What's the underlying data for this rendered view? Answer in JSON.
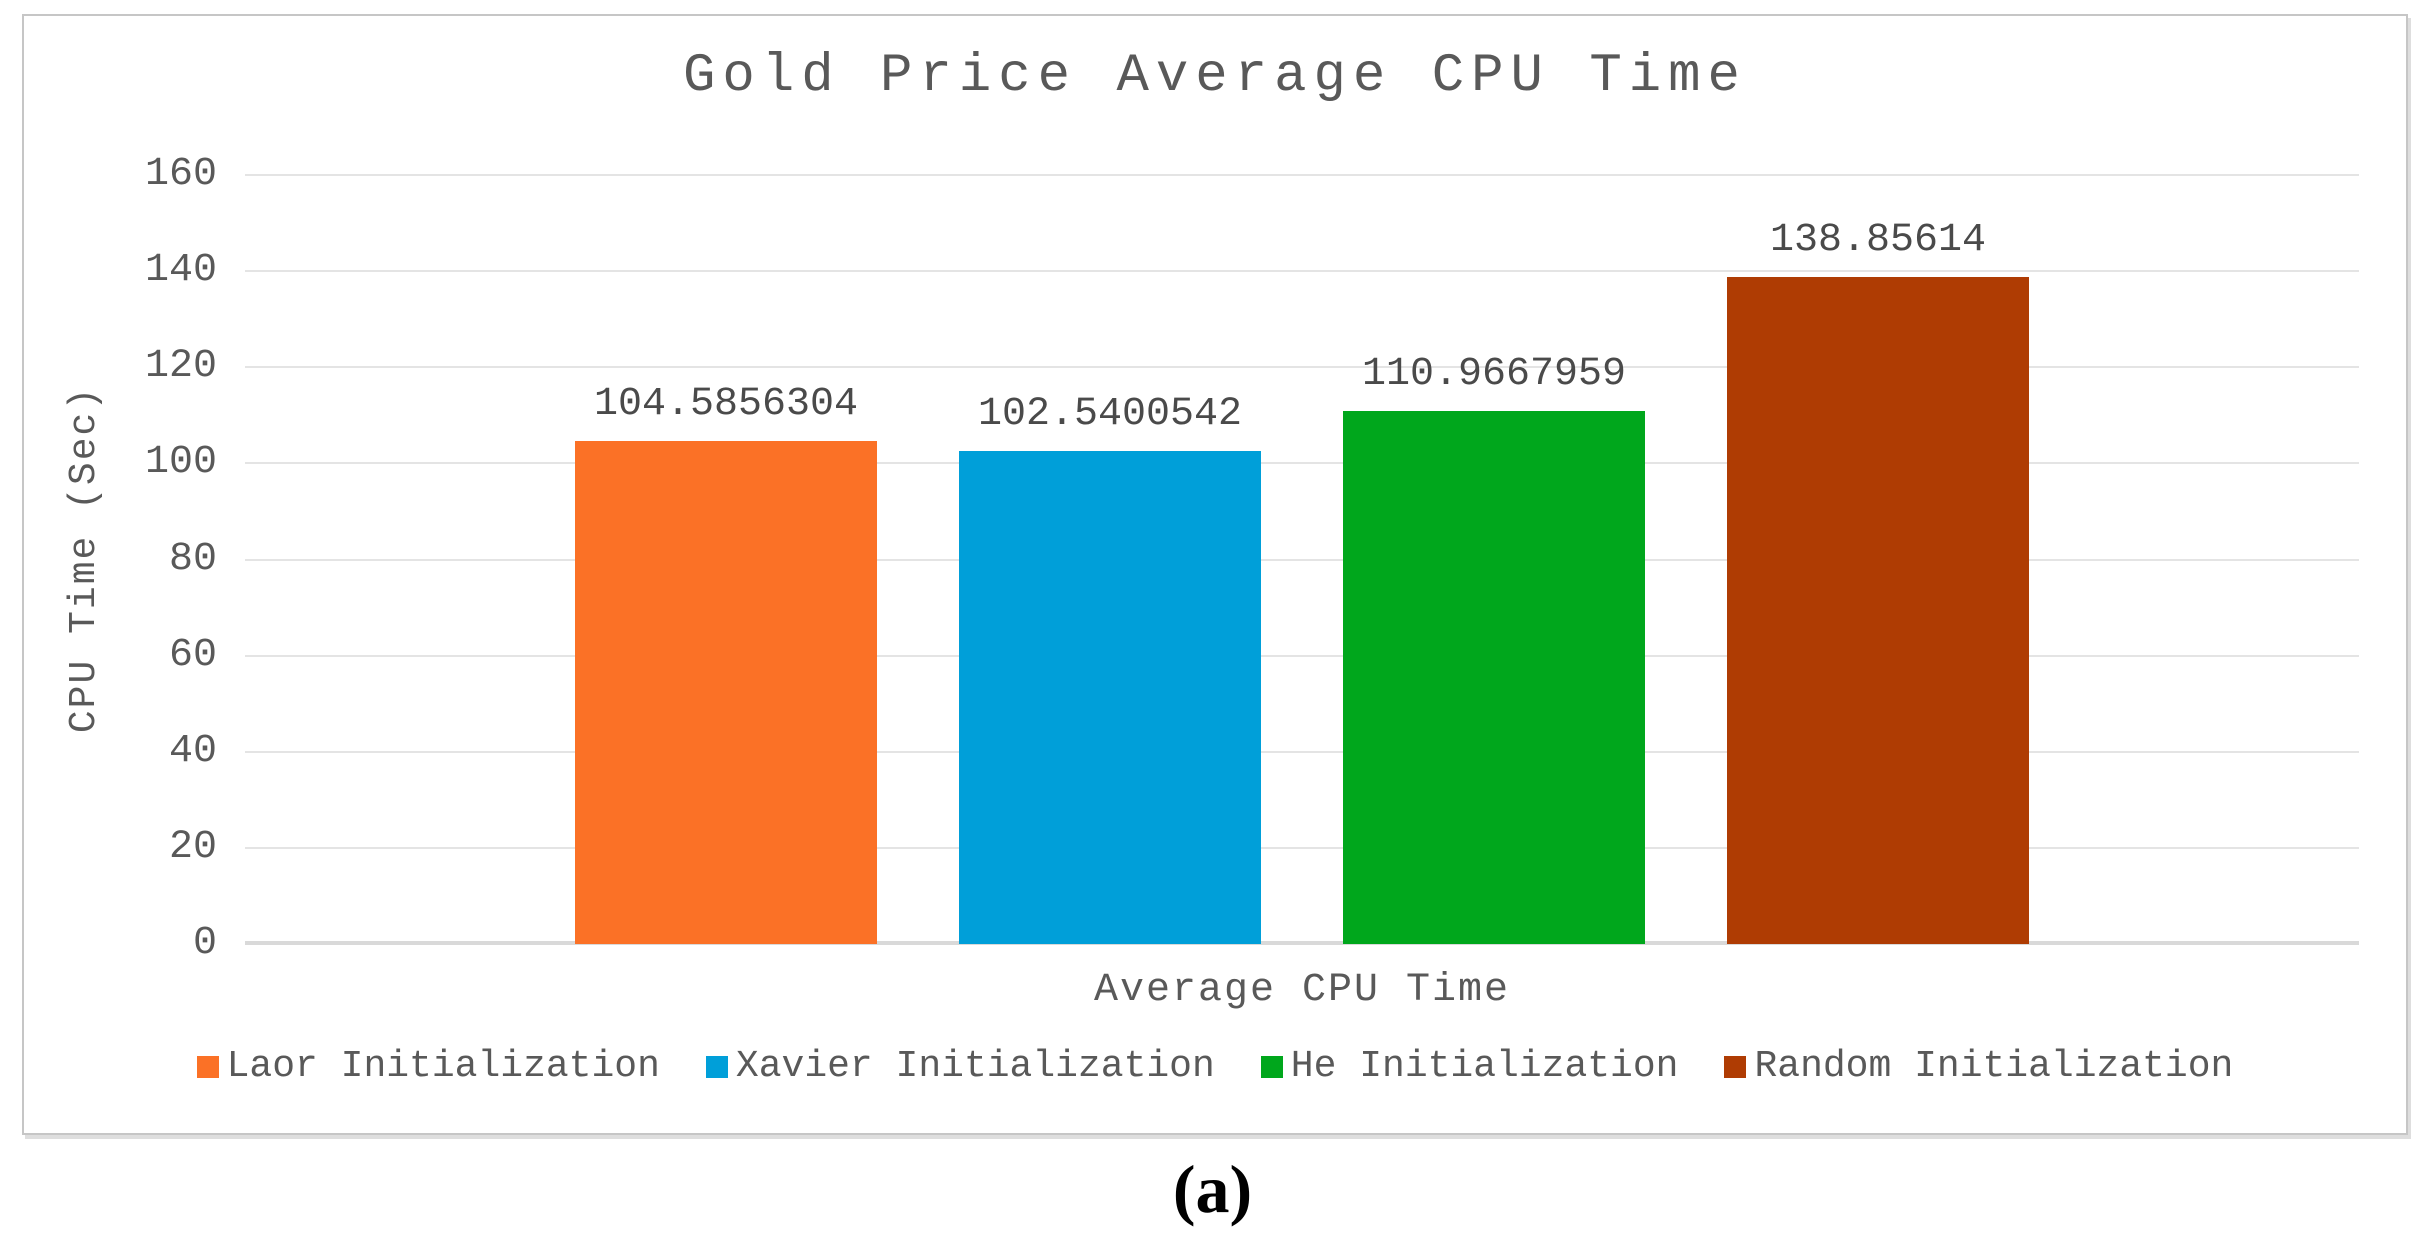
{
  "caption": "(a)",
  "chart_data": {
    "type": "bar",
    "title": "Gold Price Average CPU Time",
    "xlabel": "Average CPU Time",
    "ylabel": "CPU Time (Sec)",
    "ylim": [
      0,
      160
    ],
    "yticks": [
      0,
      20,
      40,
      60,
      80,
      100,
      120,
      140,
      160
    ],
    "grid": true,
    "legend_position": "bottom",
    "categories": [
      "Average CPU Time"
    ],
    "series": [
      {
        "name": "Laor Initialization",
        "value": 104.5856304,
        "label": "104.5856304",
        "color": "#FB7126"
      },
      {
        "name": "Xavier Initialization",
        "value": 102.5400542,
        "label": "102.5400542",
        "color": "#009FD9"
      },
      {
        "name": "He Initialization",
        "value": 110.9667959,
        "label": "110.9667959",
        "color": "#00A71C"
      },
      {
        "name": "Random Initialization",
        "value": 138.85614,
        "label": "138.85614",
        "color": "#AF3C03"
      }
    ]
  }
}
